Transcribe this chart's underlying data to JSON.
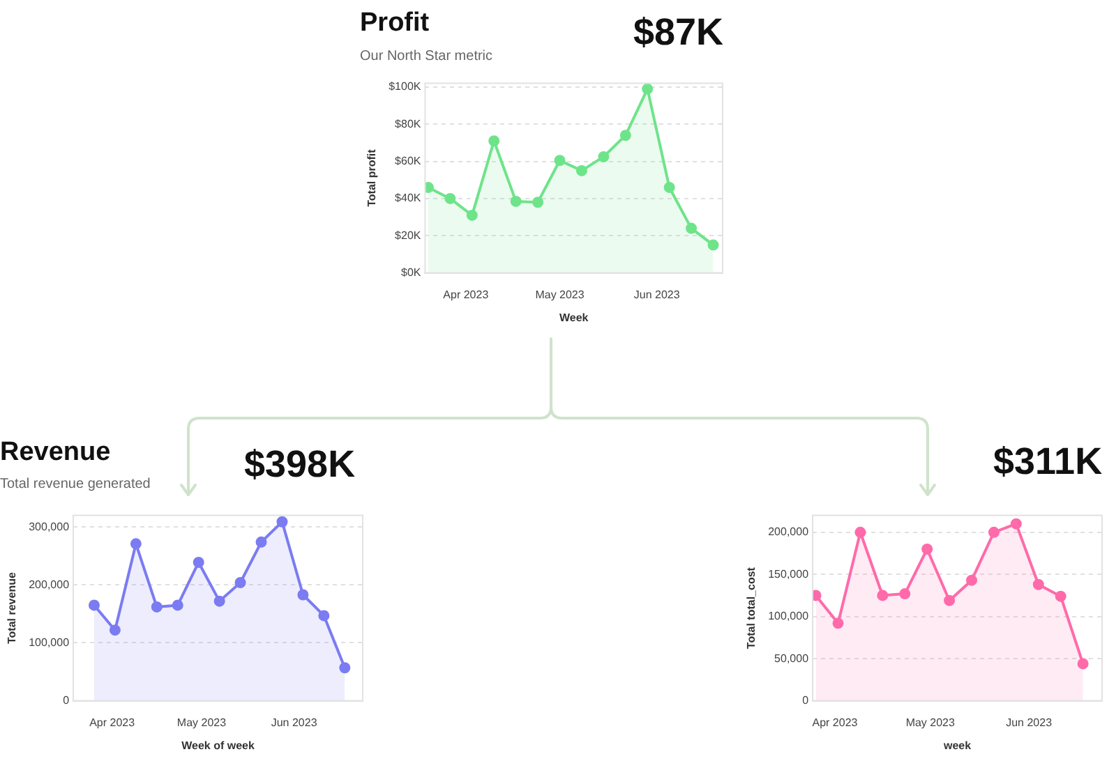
{
  "chart_data": [
    {
      "type": "area",
      "title": "Profit",
      "subtitle": "Our North Star metric",
      "annotations": [
        "$87K"
      ],
      "xlabel": "Week",
      "ylabel": "Total profit",
      "grid": "y",
      "marker": "circle",
      "legend": false,
      "x": [
        "2023-03-20",
        "2023-03-27",
        "2023-04-03",
        "2023-04-10",
        "2023-04-17",
        "2023-04-24",
        "2023-05-01",
        "2023-05-08",
        "2023-05-15",
        "2023-05-22",
        "2023-05-29",
        "2023-06-05",
        "2023-06-12",
        "2023-06-19"
      ],
      "series": [
        {
          "color": "#6ee48a",
          "values": [
            46000,
            40000,
            31000,
            71000,
            38500,
            38000,
            60500,
            55000,
            62500,
            74000,
            99000,
            46000,
            24000,
            15000
          ]
        }
      ],
      "xlim": [
        "2023-03-19",
        "2023-06-22"
      ],
      "xticks": [
        {
          "value": "2023-04-01",
          "label": "Apr 2023"
        },
        {
          "value": "2023-05-01",
          "label": "May 2023"
        },
        {
          "value": "2023-06-01",
          "label": "Jun 2023"
        }
      ],
      "ylim": [
        0,
        102000
      ],
      "yticks": [
        {
          "value": 0,
          "label": "$0K"
        },
        {
          "value": 20000,
          "label": "$20K"
        },
        {
          "value": 40000,
          "label": "$40K"
        },
        {
          "value": 60000,
          "label": "$60K"
        },
        {
          "value": 80000,
          "label": "$80K"
        },
        {
          "value": 100000,
          "label": "$100K"
        }
      ]
    },
    {
      "type": "area",
      "title": "Revenue",
      "subtitle": "Total revenue generated",
      "annotations": [
        "$398K"
      ],
      "xlabel": "Week of week",
      "ylabel": "Total revenue",
      "grid": "y",
      "marker": "circle",
      "legend": false,
      "x": [
        "2023-03-26",
        "2023-04-02",
        "2023-04-09",
        "2023-04-16",
        "2023-04-23",
        "2023-04-30",
        "2023-05-07",
        "2023-05-14",
        "2023-05-21",
        "2023-05-28",
        "2023-06-04",
        "2023-06-11",
        "2023-06-18"
      ],
      "series": [
        {
          "color": "#7b7bf2",
          "values": [
            165000,
            122000,
            271000,
            162000,
            165000,
            239000,
            172000,
            204000,
            274000,
            309000,
            183000,
            147000,
            57000
          ]
        }
      ],
      "xlim": [
        "2023-03-19",
        "2023-06-24"
      ],
      "xticks": [
        {
          "value": "2023-04-01",
          "label": "Apr 2023"
        },
        {
          "value": "2023-05-01",
          "label": "May 2023"
        },
        {
          "value": "2023-06-01",
          "label": "Jun 2023"
        }
      ],
      "ylim": [
        0,
        320000
      ],
      "yticks": [
        0,
        {
          "value": 100000,
          "label": "100,000"
        },
        {
          "value": 200000,
          "label": "200,000"
        },
        {
          "value": 300000,
          "label": "300,000"
        }
      ]
    },
    {
      "type": "area",
      "annotations": [
        "$311K"
      ],
      "xlabel": "week",
      "ylabel": "Total total_cost",
      "grid": "y",
      "marker": "circle",
      "legend": false,
      "x": [
        "2023-03-26",
        "2023-04-02",
        "2023-04-09",
        "2023-04-16",
        "2023-04-23",
        "2023-04-30",
        "2023-05-07",
        "2023-05-14",
        "2023-05-21",
        "2023-05-28",
        "2023-06-04",
        "2023-06-11",
        "2023-06-18"
      ],
      "series": [
        {
          "color": "#ff6aaa",
          "values": [
            125000,
            92000,
            200000,
            125000,
            127000,
            180000,
            119000,
            143000,
            200000,
            210000,
            138000,
            124000,
            44000
          ]
        }
      ],
      "xlim": [
        "2023-03-25",
        "2023-06-24"
      ],
      "xticks": [
        {
          "value": "2023-04-01",
          "label": "Apr 2023"
        },
        {
          "value": "2023-05-01",
          "label": "May 2023"
        },
        {
          "value": "2023-06-01",
          "label": "Jun 2023"
        }
      ],
      "ylim": [
        0,
        220000
      ],
      "yticks": [
        0,
        {
          "value": 50000,
          "label": "50,000"
        },
        {
          "value": 100000,
          "label": "100,000"
        },
        {
          "value": 150000,
          "label": "150,000"
        },
        {
          "value": 200000,
          "label": "200,000"
        }
      ]
    }
  ]
}
